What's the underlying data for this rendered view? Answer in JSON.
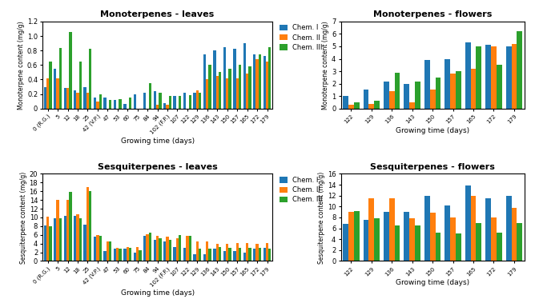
{
  "chart_data": [
    {
      "type": "bar",
      "title": "Monoterpenes - leaves",
      "xlabel": "Growing time (days)",
      "ylabel": "Monoterpene content (mg/g)",
      "categories": [
        "0 (R.G.)",
        "5",
        "12",
        "18",
        "25",
        "42 (V.P.)",
        "47",
        "53",
        "60",
        "75",
        "84",
        "94",
        "102 (F.P.)",
        "107",
        "122",
        "129",
        "136",
        "143",
        "150",
        "157",
        "165",
        "172",
        "179"
      ],
      "series": [
        {
          "name": "Chem. I",
          "values": [
            0.3,
            0.55,
            0.28,
            0.25,
            0.3,
            0.15,
            0.15,
            0.12,
            0.06,
            0.2,
            0.22,
            0.24,
            0.08,
            0.17,
            0.22,
            0.22,
            0.75,
            0.8,
            0.85,
            0.82,
            0.9,
            0.75,
            0.73
          ]
        },
        {
          "name": "Chem. II",
          "values": [
            0.42,
            0.42,
            0.28,
            0.22,
            0.22,
            0.1,
            0.0,
            0.0,
            0.0,
            0.0,
            0.0,
            0.05,
            0.05,
            0.0,
            0.0,
            0.25,
            0.4,
            0.45,
            0.42,
            0.42,
            0.48,
            0.68,
            0.65
          ]
        },
        {
          "name": "Chem. III",
          "values": [
            0.65,
            0.83,
            1.05,
            0.65,
            0.82,
            0.2,
            0.12,
            0.13,
            0.15,
            0.0,
            0.35,
            0.22,
            0.17,
            0.17,
            0.18,
            0.22,
            0.6,
            0.5,
            0.55,
            0.6,
            0.58,
            0.75,
            0.85
          ]
        }
      ],
      "ylim": [
        0,
        1.2
      ],
      "yticks": [
        0,
        0.2,
        0.4,
        0.6,
        0.8,
        {
          "value": 1,
          "label": "1.0"
        },
        1.2
      ],
      "legend": "upper left"
    },
    {
      "type": "bar",
      "title": "Monoterpenes - flowers",
      "xlabel": "Growing time (days)",
      "ylabel": "Monoterpene content (mg/g)",
      "categories": [
        "122",
        "129",
        "136",
        "143",
        "150",
        "157",
        "165",
        "172",
        "179"
      ],
      "series": [
        {
          "name": "Chem. I",
          "values": [
            1.0,
            1.5,
            2.2,
            2.0,
            3.9,
            4.0,
            5.3,
            5.1,
            5.0
          ]
        },
        {
          "name": "Chem. II",
          "values": [
            0.3,
            0.4,
            1.4,
            0.5,
            1.5,
            2.8,
            3.2,
            5.0,
            5.2
          ]
        },
        {
          "name": "Chem. III",
          "values": [
            0.5,
            0.65,
            2.9,
            2.2,
            2.5,
            3.0,
            5.0,
            3.5,
            6.2
          ]
        }
      ],
      "ylim": [
        0,
        7
      ],
      "yticks": [
        0,
        1,
        2,
        3,
        4,
        5,
        6,
        7
      ]
    },
    {
      "type": "bar",
      "title": "Sesquiterpenes - leaves",
      "xlabel": "Growing time (days)",
      "ylabel": "Sesquiterpene content (mg/g)",
      "categories": [
        "0 (R.G.)",
        "5",
        "12",
        "18",
        "25",
        "42 (V.P.)",
        "47",
        "53",
        "60",
        "75",
        "84",
        "94",
        "102 (F.P.)",
        "107",
        "122",
        "129",
        "136",
        "143",
        "150",
        "157",
        "165",
        "172",
        "179"
      ],
      "series": [
        {
          "name": "Chem. I",
          "values": [
            8.2,
            9.8,
            10.3,
            10.3,
            8.3,
            5.5,
            2.3,
            2.8,
            2.8,
            2.0,
            5.8,
            4.8,
            4.5,
            3.2,
            3.0,
            1.5,
            1.5,
            2.8,
            2.2,
            2.2,
            2.0,
            2.8,
            3.0
          ]
        },
        {
          "name": "Chem. II",
          "values": [
            10.2,
            14.0,
            14.0,
            10.8,
            17.0,
            6.0,
            4.5,
            3.0,
            3.2,
            3.2,
            6.2,
            5.8,
            5.5,
            5.2,
            5.8,
            4.5,
            4.5,
            4.0,
            4.0,
            4.2,
            4.2,
            4.0,
            4.2
          ]
        },
        {
          "name": "Chem. III",
          "values": [
            8.0,
            9.8,
            15.8,
            9.8,
            16.0,
            5.8,
            4.5,
            2.8,
            3.0,
            2.5,
            6.5,
            5.2,
            4.8,
            6.0,
            5.8,
            2.8,
            2.8,
            3.2,
            3.0,
            3.0,
            3.0,
            3.0,
            2.8
          ]
        }
      ],
      "ylim": [
        0,
        20
      ],
      "yticks": [
        0,
        2,
        4,
        6,
        8,
        10,
        12,
        14,
        16,
        18,
        20
      ],
      "legend": "upper left"
    },
    {
      "type": "bar",
      "title": "Sesquiterpenes - flowers",
      "xlabel": "Growing time (days)",
      "ylabel": "Sesquiterpene content (mg/g)",
      "categories": [
        "122",
        "129",
        "136",
        "143",
        "150",
        "157",
        "165",
        "172",
        "179"
      ],
      "series": [
        {
          "name": "Chem. I",
          "values": [
            6.8,
            7.5,
            9.0,
            9.0,
            12.0,
            10.2,
            13.8,
            11.5,
            12.0
          ]
        },
        {
          "name": "Chem. II",
          "values": [
            9.0,
            11.5,
            11.5,
            7.8,
            8.8,
            8.0,
            12.0,
            8.0,
            9.8
          ]
        },
        {
          "name": "Chem. III",
          "values": [
            9.2,
            7.8,
            6.5,
            6.5,
            5.2,
            5.0,
            7.0,
            5.2,
            7.0
          ]
        }
      ],
      "ylim": [
        0,
        16
      ],
      "yticks": [
        0,
        2,
        4,
        6,
        8,
        10,
        12,
        14,
        16
      ]
    }
  ]
}
